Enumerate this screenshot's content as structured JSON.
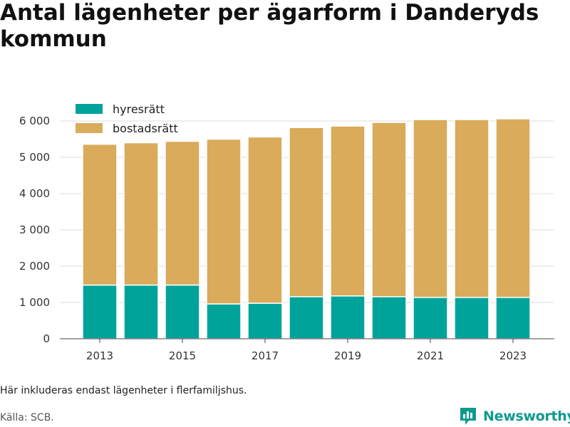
{
  "header": {
    "title": "Antal lägenheter per ägarform i Danderyds kommun"
  },
  "footer": {
    "note": "Här inkluderas endast lägenheter i flerfamiljshus.",
    "source": "Källa: SCB.",
    "brand": "Newsworthy"
  },
  "colors": {
    "hyresratt": "#00a39a",
    "bostadsratt": "#d9ab5a",
    "grid": "#dddddd",
    "brand": "#0f9a8e"
  },
  "chart_data": {
    "type": "bar",
    "stacked": true,
    "categories": [
      "2013",
      "2014",
      "2015",
      "2016",
      "2017",
      "2018",
      "2019",
      "2020",
      "2021",
      "2022",
      "2023"
    ],
    "series": [
      {
        "name": "hyresrätt",
        "values": [
          1480,
          1480,
          1480,
          960,
          980,
          1160,
          1180,
          1160,
          1140,
          1140,
          1140
        ]
      },
      {
        "name": "bostadsrätt",
        "values": [
          3880,
          3920,
          3960,
          4540,
          4580,
          4660,
          4680,
          4800,
          4900,
          4900,
          4920
        ]
      }
    ],
    "xticks": [
      "2013",
      "2015",
      "2017",
      "2019",
      "2021",
      "2023"
    ],
    "yticks": [
      "0",
      "1 000",
      "2 000",
      "3 000",
      "4 000",
      "5 000",
      "6 000"
    ],
    "ylim": [
      0,
      6000
    ],
    "legend_position": "top-left",
    "grid": true
  }
}
